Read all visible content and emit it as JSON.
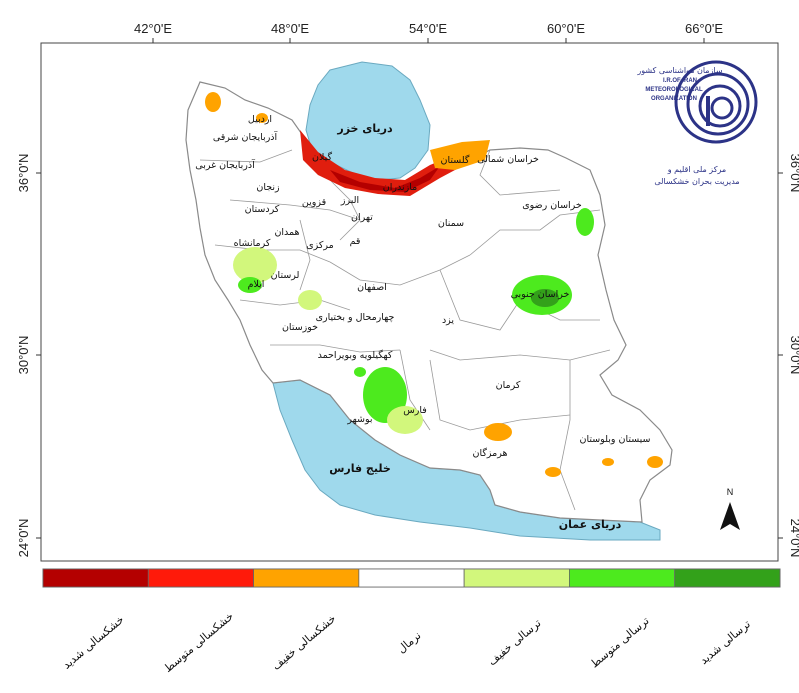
{
  "map": {
    "longitude_labels": [
      "42°0'E",
      "48°0'E",
      "54°0'E",
      "60°0'E",
      "66°0'E"
    ],
    "latitude_labels": [
      "36°0'N",
      "30°0'N",
      "24°0'N"
    ],
    "north_label": "N",
    "seas": {
      "caspian": "دریای خزر",
      "persian_gulf": "خلیج فارس",
      "oman_sea": "دریای عمان"
    },
    "provinces": {
      "ardabil": "اردبیل",
      "east_azarbaijan": "آذربایجان شرقی",
      "west_azarbaijan": "آذربایجان غربی",
      "zanjan": "زنجان",
      "gilan": "گیلان",
      "mazandaran": "مازندران",
      "golestan": "گلستان",
      "north_khorasan": "خراسان شمالی",
      "razavi_khorasan": "خراسان رضوی",
      "south_khorasan": "خراسان جنوبی",
      "semnan": "سمنان",
      "tehran": "تهران",
      "alborz": "البرز",
      "qazvin": "قزوین",
      "qom": "قم",
      "markazi": "مرکزی",
      "hamadan": "همدان",
      "kurdistan": "کردستان",
      "kermanshah": "کرمانشاه",
      "ilam": "ایلام",
      "lorestan": "لرستان",
      "khuzestan": "خوزستان",
      "isfahan": "اصفهان",
      "chaharmahal": "چهارمحال و بختیاری",
      "kohgiluyeh": "کهگیلویه وبویراحمد",
      "yazd": "یزد",
      "fars": "فارس",
      "bushehr": "بوشهر",
      "kerman": "کرمان",
      "hormozgan": "هرمزگان",
      "sistan": "سیستان وبلوستان"
    },
    "colors": {
      "sea": "#9fd9ec",
      "land": "#ffffff",
      "border": "#8a8a8a"
    }
  },
  "logo": {
    "org_fa_top": "سازمان هواشناسی کشور",
    "org_en_1": "I.R.OF IRAN",
    "org_en_2": "METEOROLOGICAL",
    "org_en_3": "ORGANIZATION",
    "center_fa_1": "مرکز ملی اقلیم و",
    "center_fa_2": "مدیریت بحران خشکسالی",
    "color": "#2c3387"
  },
  "legend": {
    "classes": [
      {
        "label": "خشکسالی شدید",
        "color": "#b40000"
      },
      {
        "label": "خشکسالی متوسط",
        "color": "#ff1a0a"
      },
      {
        "label": "خشکسالی خفیف",
        "color": "#ffa300"
      },
      {
        "label": "نرمال",
        "color": "#ffffff"
      },
      {
        "label": "ترسالی خفیف",
        "color": "#d2f77c"
      },
      {
        "label": "ترسالی متوسط",
        "color": "#4dea1e"
      },
      {
        "label": "ترسالی شدید",
        "color": "#33a11a"
      }
    ]
  }
}
